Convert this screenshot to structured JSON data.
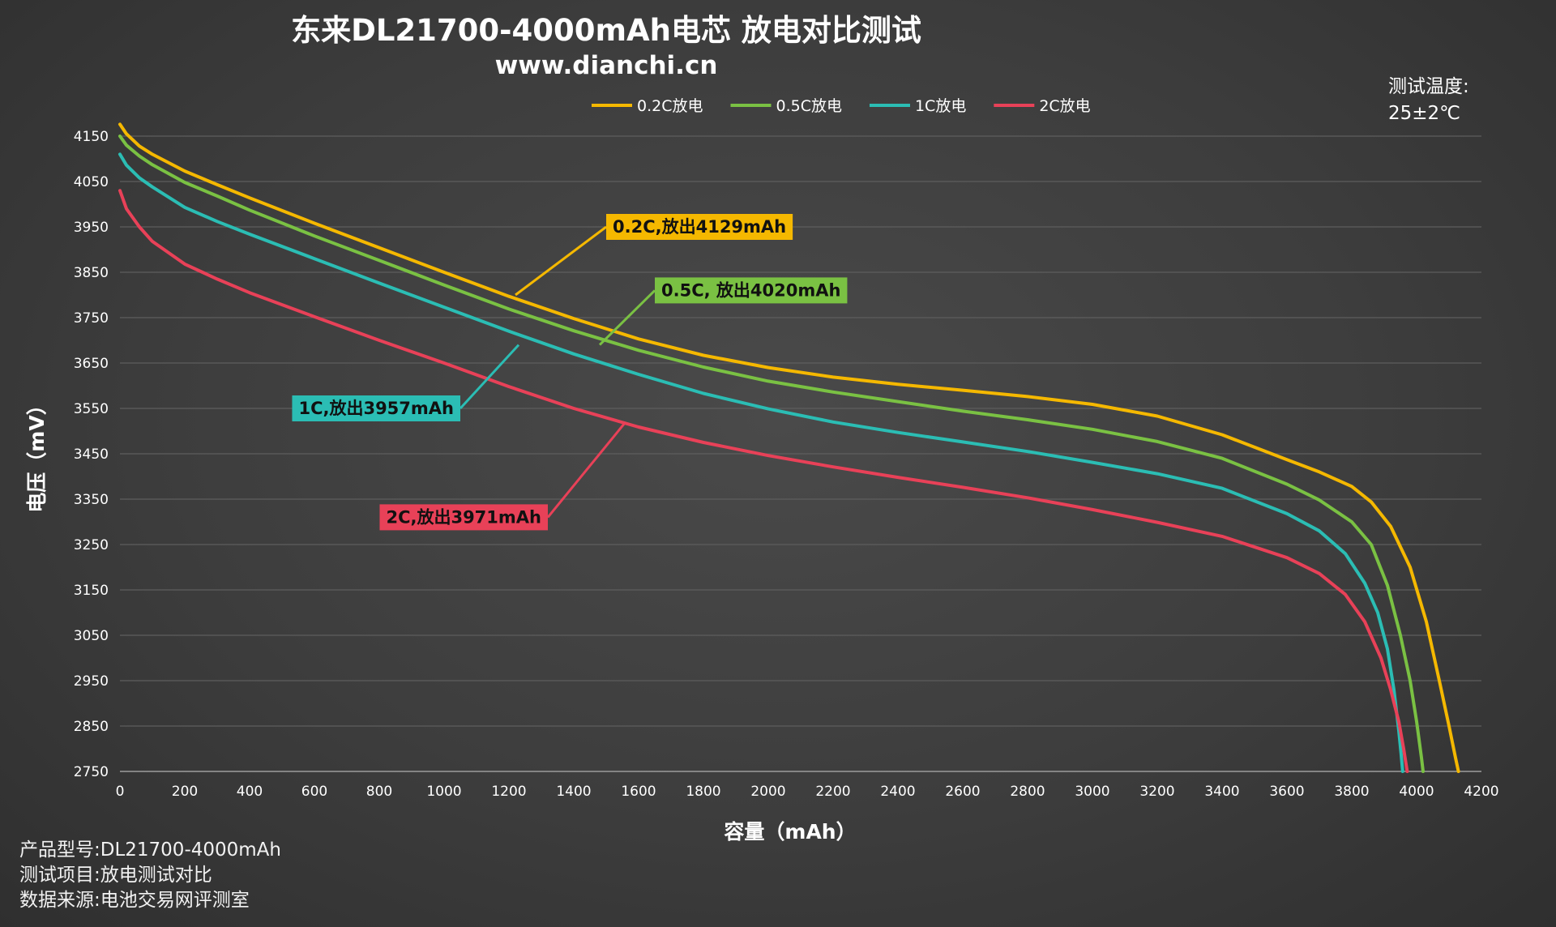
{
  "chart_data": {
    "type": "line",
    "title": "东来DL21700-4000mAh电芯 放电对比测试",
    "subtitle": "www.dianchi.cn",
    "xlabel": "容量（mAh）",
    "ylabel": "电压（mV）",
    "xlim": [
      0,
      4200
    ],
    "ylim": [
      2750,
      4150
    ],
    "xticks": [
      0,
      200,
      400,
      600,
      800,
      1000,
      1200,
      1400,
      1600,
      1800,
      2000,
      2200,
      2400,
      2600,
      2800,
      3000,
      3200,
      3400,
      3600,
      3800,
      4000,
      4200
    ],
    "yticks": [
      2750,
      2850,
      2950,
      3050,
      3150,
      3250,
      3350,
      3450,
      3550,
      3650,
      3750,
      3850,
      3950,
      4050,
      4150
    ],
    "grid": "horizontal",
    "legend_position": "top",
    "temperature_label": "测试温度:",
    "temperature_value": "25±2℃",
    "series": [
      {
        "name": "0.2C放电",
        "color": "#f5b800",
        "annotation": "0.2C,放出4129mAh",
        "points": [
          [
            0,
            4176
          ],
          [
            20,
            4155
          ],
          [
            60,
            4128
          ],
          [
            100,
            4110
          ],
          [
            200,
            4073
          ],
          [
            300,
            4043
          ],
          [
            400,
            4014
          ],
          [
            600,
            3958
          ],
          [
            800,
            3904
          ],
          [
            1000,
            3850
          ],
          [
            1200,
            3797
          ],
          [
            1400,
            3748
          ],
          [
            1600,
            3703
          ],
          [
            1800,
            3667
          ],
          [
            2000,
            3640
          ],
          [
            2200,
            3619
          ],
          [
            2400,
            3603
          ],
          [
            2600,
            3590
          ],
          [
            2800,
            3576
          ],
          [
            3000,
            3559
          ],
          [
            3200,
            3533
          ],
          [
            3400,
            3492
          ],
          [
            3600,
            3437
          ],
          [
            3700,
            3410
          ],
          [
            3800,
            3378
          ],
          [
            3860,
            3344
          ],
          [
            3920,
            3290
          ],
          [
            3980,
            3200
          ],
          [
            4030,
            3080
          ],
          [
            4070,
            2950
          ],
          [
            4100,
            2850
          ],
          [
            4120,
            2780
          ],
          [
            4129,
            2750
          ]
        ]
      },
      {
        "name": "0.5C放电",
        "color": "#7ac143",
        "annotation": "0.5C, 放出4020mAh",
        "points": [
          [
            0,
            4150
          ],
          [
            20,
            4130
          ],
          [
            60,
            4106
          ],
          [
            100,
            4087
          ],
          [
            200,
            4048
          ],
          [
            300,
            4018
          ],
          [
            400,
            3987
          ],
          [
            600,
            3930
          ],
          [
            800,
            3876
          ],
          [
            1000,
            3822
          ],
          [
            1200,
            3769
          ],
          [
            1400,
            3721
          ],
          [
            1600,
            3678
          ],
          [
            1800,
            3641
          ],
          [
            2000,
            3610
          ],
          [
            2200,
            3586
          ],
          [
            2400,
            3565
          ],
          [
            2600,
            3544
          ],
          [
            2800,
            3525
          ],
          [
            3000,
            3504
          ],
          [
            3200,
            3477
          ],
          [
            3400,
            3440
          ],
          [
            3600,
            3383
          ],
          [
            3700,
            3348
          ],
          [
            3800,
            3300
          ],
          [
            3860,
            3250
          ],
          [
            3910,
            3160
          ],
          [
            3950,
            3050
          ],
          [
            3980,
            2950
          ],
          [
            4000,
            2860
          ],
          [
            4015,
            2780
          ],
          [
            4020,
            2750
          ]
        ]
      },
      {
        "name": "1C放电",
        "color": "#2bbdb4",
        "annotation": "1C,放出3957mAh",
        "points": [
          [
            0,
            4110
          ],
          [
            20,
            4086
          ],
          [
            60,
            4058
          ],
          [
            100,
            4038
          ],
          [
            200,
            3993
          ],
          [
            300,
            3962
          ],
          [
            400,
            3934
          ],
          [
            600,
            3880
          ],
          [
            800,
            3826
          ],
          [
            1000,
            3773
          ],
          [
            1200,
            3720
          ],
          [
            1400,
            3670
          ],
          [
            1600,
            3625
          ],
          [
            1800,
            3583
          ],
          [
            2000,
            3549
          ],
          [
            2200,
            3520
          ],
          [
            2400,
            3497
          ],
          [
            2600,
            3476
          ],
          [
            2800,
            3455
          ],
          [
            3000,
            3431
          ],
          [
            3200,
            3406
          ],
          [
            3400,
            3374
          ],
          [
            3600,
            3318
          ],
          [
            3700,
            3280
          ],
          [
            3780,
            3230
          ],
          [
            3840,
            3165
          ],
          [
            3880,
            3100
          ],
          [
            3910,
            3020
          ],
          [
            3930,
            2930
          ],
          [
            3945,
            2840
          ],
          [
            3952,
            2790
          ],
          [
            3957,
            2750
          ]
        ]
      },
      {
        "name": "2C放电",
        "color": "#e84158",
        "annotation": "2C,放出3971mAh",
        "points": [
          [
            0,
            4030
          ],
          [
            20,
            3990
          ],
          [
            60,
            3950
          ],
          [
            100,
            3918
          ],
          [
            200,
            3868
          ],
          [
            300,
            3835
          ],
          [
            400,
            3805
          ],
          [
            600,
            3752
          ],
          [
            800,
            3700
          ],
          [
            1000,
            3650
          ],
          [
            1200,
            3598
          ],
          [
            1400,
            3550
          ],
          [
            1600,
            3509
          ],
          [
            1800,
            3475
          ],
          [
            2000,
            3446
          ],
          [
            2200,
            3421
          ],
          [
            2400,
            3398
          ],
          [
            2600,
            3376
          ],
          [
            2800,
            3353
          ],
          [
            3000,
            3327
          ],
          [
            3200,
            3299
          ],
          [
            3400,
            3268
          ],
          [
            3600,
            3221
          ],
          [
            3700,
            3186
          ],
          [
            3780,
            3140
          ],
          [
            3840,
            3080
          ],
          [
            3890,
            3000
          ],
          [
            3920,
            2930
          ],
          [
            3945,
            2860
          ],
          [
            3960,
            2800
          ],
          [
            3971,
            2750
          ]
        ]
      }
    ],
    "callouts": [
      {
        "series": 0,
        "anchor": [
          1220,
          3800
        ],
        "label_at": [
          1500,
          3950
        ]
      },
      {
        "series": 1,
        "anchor": [
          1480,
          3690
        ],
        "label_at": [
          1650,
          3810
        ]
      },
      {
        "series": 2,
        "anchor": [
          1230,
          3690
        ],
        "label_at": [
          1050,
          3550
        ]
      },
      {
        "series": 3,
        "anchor": [
          1560,
          3520
        ],
        "label_at": [
          1320,
          3310
        ]
      }
    ]
  },
  "footer": {
    "model_label": "产品型号:",
    "model_value": "DL21700-4000mAh",
    "test_label": "测试项目:",
    "test_value": "放电测试对比",
    "source_label": "数据来源:",
    "source_value": "电池交易网评测室"
  }
}
